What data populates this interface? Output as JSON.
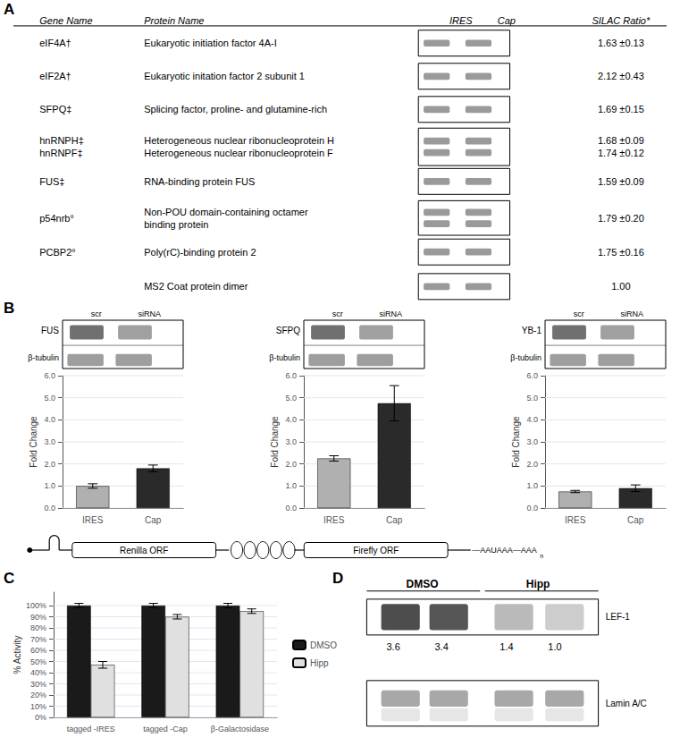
{
  "chart_data": [
    {
      "type": "table",
      "title": "A",
      "columns": [
        "Gene Name",
        "Protein Name",
        "IRES",
        "Cap",
        "SILAC Ratio*"
      ],
      "rows": [
        [
          "eIF4A†",
          "Eukaryotic initiation factor 4A-I",
          null,
          null,
          "1.63 ±0.13"
        ],
        [
          "eIF2A†",
          "Eukaryotic initation factor 2 subunit 1",
          null,
          null,
          "2.12 ±0.43"
        ],
        [
          "SFPQ‡",
          "Splicing factor, proline- and glutamine-rich",
          null,
          null,
          "1.69 ±0.15"
        ],
        [
          "hnRNPH‡\nhnRNPF‡",
          "Heterogeneous nuclear ribonucleoprotein H\nHeterogeneous nuclear ribonucleoprotein F",
          null,
          null,
          "1.68 ±0.09\n1.74 ±0.12"
        ],
        [
          "FUS‡",
          "RNA-binding protein FUS",
          null,
          null,
          "1.59 ±0.09"
        ],
        [
          "p54nrb°",
          "Non-POU domain-containing octamer\nbinding protein",
          null,
          null,
          "1.79 ±0.20"
        ],
        [
          "PCBP2°",
          "Poly(rC)-binding protein 2",
          null,
          null,
          "1.75 ±0.16"
        ],
        [
          null,
          "MS2 Coat protein dimer",
          null,
          null,
          "1.00"
        ]
      ]
    },
    {
      "type": "bar",
      "title": "B",
      "blot_labels": [
        "FUS",
        "β-tubulin"
      ],
      "lanes": [
        "scr",
        "siRNA"
      ],
      "categories": [
        "IRES",
        "Cap"
      ],
      "values": [
        1.0,
        1.8
      ],
      "errors": [
        0.1,
        0.15
      ],
      "colors": [
        "#b0b0b0",
        "#2a2a2a"
      ],
      "ylabel": "Fold Change",
      "ylim": [
        0,
        6
      ],
      "yticks": [
        {
          "value": 0,
          "label": "0.0"
        },
        {
          "value": 1,
          "label": "1.0"
        },
        {
          "value": 2,
          "label": "2.0"
        },
        {
          "value": 3,
          "label": "3.0"
        },
        {
          "value": 4,
          "label": "4.0"
        },
        {
          "value": 5,
          "label": "5.0"
        },
        {
          "value": 6,
          "label": "6.0"
        }
      ],
      "grid": true
    },
    {
      "type": "bar",
      "blot_labels": [
        "SFPQ",
        "β-tubulin"
      ],
      "lanes": [
        "scr",
        "siRNA"
      ],
      "categories": [
        "IRES",
        "Cap"
      ],
      "values": [
        2.25,
        4.75
      ],
      "errors": [
        0.12,
        0.8
      ],
      "colors": [
        "#b0b0b0",
        "#2a2a2a"
      ],
      "ylabel": "Fold Change",
      "ylim": [
        0,
        6
      ],
      "yticks": [
        {
          "value": 0,
          "label": "0.0"
        },
        {
          "value": 1,
          "label": "1.0"
        },
        {
          "value": 2,
          "label": "2.0"
        },
        {
          "value": 3,
          "label": "3.0"
        },
        {
          "value": 4,
          "label": "4.0"
        },
        {
          "value": 5,
          "label": "5.0"
        },
        {
          "value": 6,
          "label": "6.0"
        }
      ],
      "grid": true
    },
    {
      "type": "bar",
      "blot_labels": [
        "YB-1",
        "β-tubulin"
      ],
      "lanes": [
        "scr",
        "siRNA"
      ],
      "categories": [
        "IRES",
        "Cap"
      ],
      "values": [
        0.75,
        0.9
      ],
      "errors": [
        0.05,
        0.15
      ],
      "colors": [
        "#b0b0b0",
        "#2a2a2a"
      ],
      "ylabel": "Fold Change",
      "ylim": [
        0,
        6
      ],
      "yticks": [
        {
          "value": 0,
          "label": "0.0"
        },
        {
          "value": 1,
          "label": "1.0"
        },
        {
          "value": 2,
          "label": "2.0"
        },
        {
          "value": 3,
          "label": "3.0"
        },
        {
          "value": 4,
          "label": "4.0"
        },
        {
          "value": 5,
          "label": "5.0"
        },
        {
          "value": 6,
          "label": "6.0"
        }
      ],
      "grid": true
    },
    {
      "type": "diagram",
      "labels": [
        "Renilla ORF",
        "Firefly ORF"
      ],
      "tail": "—AAUAAA—AAA",
      "tail_sub": "n"
    },
    {
      "type": "bar",
      "title": "C",
      "categories": [
        "tagged -IRES",
        "tagged -Cap",
        "β-Galactosidase"
      ],
      "series": [
        {
          "name": "DMSO",
          "color": "#1a1a1a",
          "values": [
            100,
            100,
            100
          ],
          "errors": [
            2,
            2,
            2
          ]
        },
        {
          "name": "Hipp",
          "color": "#e0e0e0",
          "values": [
            47,
            90,
            95
          ],
          "errors": [
            3,
            2,
            2
          ]
        }
      ],
      "ylabel": "% Activity",
      "ylim": [
        0,
        112
      ],
      "yticks": [
        {
          "value": 0,
          "label": "0%"
        },
        {
          "value": 10,
          "label": "10%"
        },
        {
          "value": 20,
          "label": "20%"
        },
        {
          "value": 30,
          "label": "30%"
        },
        {
          "value": 40,
          "label": "40%"
        },
        {
          "value": 50,
          "label": "50%"
        },
        {
          "value": 60,
          "label": "60%"
        },
        {
          "value": 70,
          "label": "70%"
        },
        {
          "value": 80,
          "label": "80%"
        },
        {
          "value": 90,
          "label": "90%"
        },
        {
          "value": 100,
          "label": "100%"
        }
      ],
      "grid": true,
      "legend": "right"
    },
    {
      "type": "blot",
      "title": "D",
      "groups": [
        "DMSO",
        "Hipp"
      ],
      "bands": [
        "LEF-1",
        "Lamin A/C"
      ],
      "values": [
        3.6,
        3.4,
        1.4,
        1.0
      ],
      "value_labels": [
        "3.6",
        "3.4",
        "1.4",
        "1.0"
      ]
    }
  ]
}
